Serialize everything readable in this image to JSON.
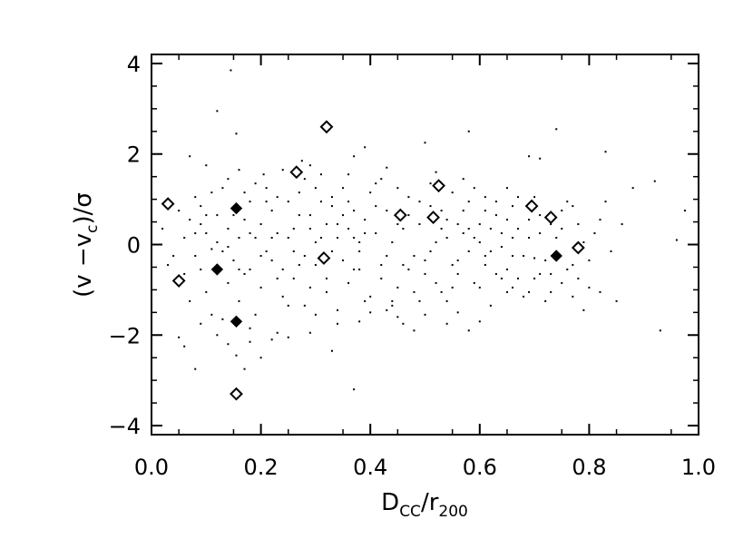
{
  "chart_data": {
    "type": "scatter",
    "title": "",
    "xlim": [
      0.0,
      1.0
    ],
    "ylim": [
      -4.2,
      4.2
    ],
    "x_ticks": [
      0.0,
      0.2,
      0.4,
      0.6,
      0.8,
      1.0
    ],
    "x_tick_labels": [
      "0.0",
      "0.2",
      "0.4",
      "0.6",
      "0.8",
      "1.0"
    ],
    "y_ticks": [
      -4,
      -2,
      0,
      2,
      4
    ],
    "y_tick_labels": [
      "−4",
      "−2",
      "0",
      "2",
      "4"
    ],
    "xlabel": {
      "main": "D",
      "sub": "CC",
      "mid": "/r",
      "sub2": "200"
    },
    "ylabel": {
      "p1": "(v −v",
      "sub": "c",
      "p2": ")/σ"
    },
    "grid": false,
    "series": [
      {
        "marker": "dot",
        "color": "#000000",
        "points": [
          [
            0.145,
            3.85
          ],
          [
            0.12,
            2.95
          ],
          [
            0.155,
            2.45
          ],
          [
            0.32,
            2.6
          ],
          [
            0.39,
            2.15
          ],
          [
            0.5,
            2.25
          ],
          [
            0.58,
            2.5
          ],
          [
            0.74,
            2.55
          ],
          [
            0.83,
            2.05
          ],
          [
            0.07,
            1.95
          ],
          [
            0.1,
            1.75
          ],
          [
            0.205,
            1.55
          ],
          [
            0.275,
            1.85
          ],
          [
            0.29,
            1.75
          ],
          [
            0.37,
            1.95
          ],
          [
            0.43,
            1.7
          ],
          [
            0.52,
            1.6
          ],
          [
            0.69,
            1.95
          ],
          [
            0.71,
            1.9
          ],
          [
            0.88,
            1.25
          ],
          [
            0.92,
            1.4
          ],
          [
            0.975,
            0.75
          ],
          [
            0.96,
            0.1
          ],
          [
            0.93,
            -1.9
          ],
          [
            0.85,
            -1.25
          ],
          [
            0.82,
            -1.05
          ],
          [
            0.79,
            -1.45
          ],
          [
            0.77,
            -1.15
          ],
          [
            0.73,
            -0.65
          ],
          [
            0.7,
            -0.3
          ],
          [
            0.66,
            -0.95
          ],
          [
            0.65,
            -1.05
          ],
          [
            0.61,
            -0.45
          ],
          [
            0.6,
            -1.7
          ],
          [
            0.58,
            -1.9
          ],
          [
            0.56,
            -1.5
          ],
          [
            0.54,
            -1.75
          ],
          [
            0.5,
            -1.55
          ],
          [
            0.48,
            -1.9
          ],
          [
            0.45,
            -1.6
          ],
          [
            0.44,
            -1.35
          ],
          [
            0.4,
            -1.5
          ],
          [
            0.38,
            -1.7
          ],
          [
            0.37,
            -3.2
          ],
          [
            0.33,
            -2.35
          ],
          [
            0.3,
            -1.55
          ],
          [
            0.29,
            -1.95
          ],
          [
            0.25,
            -2.05
          ],
          [
            0.23,
            -1.95
          ],
          [
            0.22,
            -2.1
          ],
          [
            0.2,
            -2.5
          ],
          [
            0.18,
            -2.15
          ],
          [
            0.17,
            -2.75
          ],
          [
            0.155,
            -2.45
          ],
          [
            0.14,
            -2.2
          ],
          [
            0.12,
            -2.0
          ],
          [
            0.08,
            -2.75
          ],
          [
            0.06,
            -2.25
          ],
          [
            0.05,
            -2.05
          ],
          [
            0.09,
            -1.75
          ],
          [
            0.11,
            -1.55
          ],
          [
            0.13,
            -1.65
          ],
          [
            0.04,
            -0.25
          ],
          [
            0.06,
            0.15
          ],
          [
            0.07,
            0.55
          ],
          [
            0.08,
            1.05
          ],
          [
            0.09,
            0.85
          ],
          [
            0.1,
            0.25
          ],
          [
            0.11,
            -0.1
          ],
          [
            0.12,
            0.65
          ],
          [
            0.13,
            1.25
          ],
          [
            0.14,
            0.35
          ],
          [
            0.15,
            -0.35
          ],
          [
            0.16,
            0.15
          ],
          [
            0.17,
            0.55
          ],
          [
            0.18,
            0.95
          ],
          [
            0.19,
            1.35
          ],
          [
            0.2,
            0.45
          ],
          [
            0.21,
            -0.15
          ],
          [
            0.22,
            0.75
          ],
          [
            0.23,
            0.25
          ],
          [
            0.24,
            -0.55
          ],
          [
            0.25,
            0.95
          ],
          [
            0.26,
            0.35
          ],
          [
            0.27,
            1.15
          ],
          [
            0.28,
            -0.25
          ],
          [
            0.29,
            0.65
          ],
          [
            0.3,
            1.25
          ],
          [
            0.31,
            0.15
          ],
          [
            0.32,
            -0.75
          ],
          [
            0.33,
            0.85
          ],
          [
            0.34,
            0.45
          ],
          [
            0.35,
            -0.35
          ],
          [
            0.36,
            0.95
          ],
          [
            0.37,
            0.15
          ],
          [
            0.38,
            -0.15
          ],
          [
            0.39,
            0.55
          ],
          [
            0.4,
            1.15
          ],
          [
            0.41,
            0.25
          ],
          [
            0.42,
            -0.45
          ],
          [
            0.43,
            0.75
          ],
          [
            0.44,
            0.05
          ],
          [
            0.45,
            -0.95
          ],
          [
            0.46,
            0.35
          ],
          [
            0.47,
            1.05
          ],
          [
            0.48,
            -0.25
          ],
          [
            0.49,
            0.45
          ],
          [
            0.5,
            -0.65
          ],
          [
            0.51,
            0.85
          ],
          [
            0.52,
            0.05
          ],
          [
            0.53,
            -1.05
          ],
          [
            0.54,
            0.55
          ],
          [
            0.55,
            1.15
          ],
          [
            0.56,
            -0.35
          ],
          [
            0.57,
            0.25
          ],
          [
            0.58,
            0.95
          ],
          [
            0.59,
            -0.85
          ],
          [
            0.6,
            0.45
          ],
          [
            0.61,
            1.05
          ],
          [
            0.62,
            -0.15
          ],
          [
            0.63,
            0.65
          ],
          [
            0.64,
            0.25
          ],
          [
            0.65,
            -0.55
          ],
          [
            0.66,
            0.85
          ],
          [
            0.67,
            0.35
          ],
          [
            0.68,
            -0.25
          ],
          [
            0.69,
            0.55
          ],
          [
            0.7,
            1.05
          ],
          [
            0.71,
            0.25
          ],
          [
            0.72,
            -0.35
          ],
          [
            0.74,
            0.15
          ],
          [
            0.75,
            0.75
          ],
          [
            0.76,
            -0.55
          ],
          [
            0.78,
            0.45
          ],
          [
            0.79,
            0.05
          ],
          [
            0.8,
            -0.35
          ],
          [
            0.82,
            0.55
          ],
          [
            0.84,
            -0.15
          ],
          [
            0.06,
            -0.65
          ],
          [
            0.08,
            -0.25
          ],
          [
            0.1,
            -1.05
          ],
          [
            0.12,
            -0.45
          ],
          [
            0.14,
            -0.85
          ],
          [
            0.16,
            -1.25
          ],
          [
            0.18,
            -0.55
          ],
          [
            0.2,
            -0.95
          ],
          [
            0.22,
            -0.35
          ],
          [
            0.24,
            -1.15
          ],
          [
            0.26,
            -0.75
          ],
          [
            0.28,
            -1.35
          ],
          [
            0.3,
            -0.45
          ],
          [
            0.32,
            -1.05
          ],
          [
            0.34,
            -1.45
          ],
          [
            0.36,
            -0.85
          ],
          [
            0.38,
            -0.55
          ],
          [
            0.4,
            -1.15
          ],
          [
            0.42,
            -0.75
          ],
          [
            0.44,
            -1.25
          ],
          [
            0.46,
            -0.45
          ],
          [
            0.48,
            -1.05
          ],
          [
            0.5,
            -0.35
          ],
          [
            0.52,
            -0.85
          ],
          [
            0.54,
            -1.25
          ],
          [
            0.56,
            -0.65
          ],
          [
            0.58,
            -0.15
          ],
          [
            0.6,
            -0.95
          ],
          [
            0.62,
            -1.35
          ],
          [
            0.64,
            -0.75
          ],
          [
            0.66,
            -0.25
          ],
          [
            0.68,
            -1.15
          ],
          [
            0.7,
            -0.75
          ],
          [
            0.72,
            -1.25
          ],
          [
            0.75,
            -0.85
          ],
          [
            0.77,
            -0.45
          ],
          [
            0.09,
            0.45
          ],
          [
            0.11,
            1.15
          ],
          [
            0.13,
            -0.15
          ],
          [
            0.15,
            0.65
          ],
          [
            0.17,
            -0.65
          ],
          [
            0.19,
            0.15
          ],
          [
            0.21,
            0.95
          ],
          [
            0.23,
            -0.75
          ],
          [
            0.25,
            0.15
          ],
          [
            0.27,
            -0.45
          ],
          [
            0.29,
            0.35
          ],
          [
            0.31,
            0.95
          ],
          [
            0.33,
            -0.15
          ],
          [
            0.35,
            0.65
          ],
          [
            0.37,
            -0.55
          ],
          [
            0.39,
            0.25
          ],
          [
            0.41,
            0.85
          ],
          [
            0.43,
            -0.25
          ],
          [
            0.45,
            0.45
          ],
          [
            0.47,
            -0.55
          ],
          [
            0.49,
            0.95
          ],
          [
            0.51,
            -0.15
          ],
          [
            0.53,
            0.35
          ],
          [
            0.55,
            -0.45
          ],
          [
            0.57,
            0.75
          ],
          [
            0.59,
            0.15
          ],
          [
            0.61,
            -0.25
          ],
          [
            0.63,
            0.95
          ],
          [
            0.65,
            0.55
          ],
          [
            0.67,
            -0.75
          ],
          [
            0.69,
            0.15
          ],
          [
            0.71,
            -0.65
          ],
          [
            0.73,
            0.45
          ],
          [
            0.76,
            0.95
          ],
          [
            0.78,
            -0.75
          ],
          [
            0.81,
            0.25
          ],
          [
            0.02,
            0.35
          ],
          [
            0.03,
            -0.45
          ],
          [
            0.05,
            0.75
          ],
          [
            0.07,
            -1.25
          ],
          [
            0.09,
            -0.55
          ],
          [
            0.17,
            1.15
          ],
          [
            0.19,
            -1.55
          ],
          [
            0.21,
            1.25
          ],
          [
            0.23,
            1.05
          ],
          [
            0.25,
            -1.35
          ],
          [
            0.27,
            0.65
          ],
          [
            0.29,
            -0.95
          ],
          [
            0.31,
            1.55
          ],
          [
            0.33,
            1.05
          ],
          [
            0.35,
            1.25
          ],
          [
            0.37,
            0.75
          ],
          [
            0.39,
            -1.25
          ],
          [
            0.41,
            1.35
          ],
          [
            0.43,
            -1.45
          ],
          [
            0.45,
            1.25
          ],
          [
            0.47,
            0.65
          ],
          [
            0.49,
            -1.25
          ],
          [
            0.51,
            1.35
          ],
          [
            0.53,
            0.75
          ],
          [
            0.55,
            -0.95
          ],
          [
            0.57,
            1.45
          ],
          [
            0.59,
            1.25
          ],
          [
            0.61,
            0.75
          ],
          [
            0.63,
            -0.65
          ],
          [
            0.65,
            1.25
          ],
          [
            0.67,
            1.05
          ],
          [
            0.69,
            -1.05
          ],
          [
            0.71,
            0.65
          ],
          [
            0.73,
            -1.05
          ],
          [
            0.75,
            0.35
          ],
          [
            0.77,
            0.85
          ],
          [
            0.8,
            -0.95
          ],
          [
            0.83,
            0.95
          ],
          [
            0.86,
            0.45
          ],
          [
            0.14,
            1.45
          ],
          [
            0.16,
            1.65
          ],
          [
            0.18,
            -1.85
          ],
          [
            0.24,
            1.65
          ],
          [
            0.28,
            1.45
          ],
          [
            0.34,
            -1.75
          ],
          [
            0.36,
            1.55
          ],
          [
            0.42,
            1.45
          ],
          [
            0.46,
            -1.75
          ],
          [
            0.3,
            0.05
          ],
          [
            0.32,
            0.45
          ],
          [
            0.34,
            0.15
          ],
          [
            0.36,
            0.35
          ],
          [
            0.38,
            0.05
          ],
          [
            0.26,
            -0.15
          ],
          [
            0.22,
            0.15
          ],
          [
            0.2,
            -0.25
          ],
          [
            0.18,
            0.25
          ],
          [
            0.16,
            -0.55
          ],
          [
            0.14,
            -0.05
          ],
          [
            0.12,
            0.05
          ],
          [
            0.1,
            0.65
          ],
          [
            0.08,
            0.25
          ],
          [
            0.54,
            0.15
          ],
          [
            0.56,
            0.45
          ],
          [
            0.58,
            0.35
          ],
          [
            0.6,
            0.05
          ],
          [
            0.62,
            0.35
          ],
          [
            0.64,
            -0.05
          ],
          [
            0.66,
            0.15
          ]
        ]
      },
      {
        "marker": "open-diamond",
        "color": "#000000",
        "points": [
          [
            0.03,
            0.9
          ],
          [
            0.05,
            -0.8
          ],
          [
            0.265,
            1.6
          ],
          [
            0.32,
            2.6
          ],
          [
            0.315,
            -0.3
          ],
          [
            0.455,
            0.65
          ],
          [
            0.515,
            0.6
          ],
          [
            0.525,
            1.3
          ],
          [
            0.695,
            0.85
          ],
          [
            0.73,
            0.6
          ],
          [
            0.78,
            -0.07
          ],
          [
            0.155,
            -3.3
          ]
        ]
      },
      {
        "marker": "filled-diamond",
        "color": "#000000",
        "points": [
          [
            0.155,
            0.8
          ],
          [
            0.12,
            -0.55
          ],
          [
            0.155,
            -1.7
          ],
          [
            0.74,
            -0.25
          ]
        ]
      }
    ]
  }
}
